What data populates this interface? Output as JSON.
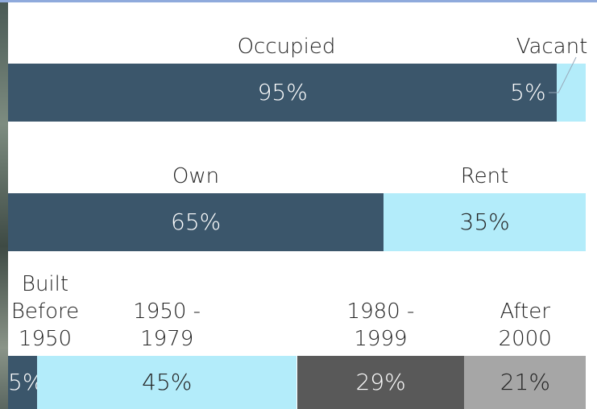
{
  "chart_data": [
    {
      "type": "bar",
      "stacked": true,
      "orientation": "horizontal",
      "series": [
        {
          "name": "Occupied",
          "color": "#3b566b",
          "values": [
            95
          ],
          "value_labels": [
            "95%"
          ]
        },
        {
          "name": "Vacant",
          "color": "#b3ecfa",
          "values": [
            5
          ],
          "value_labels": [
            "5%"
          ]
        }
      ]
    },
    {
      "type": "bar",
      "stacked": true,
      "orientation": "horizontal",
      "series": [
        {
          "name": "Own",
          "color": "#3b566b",
          "values": [
            65
          ],
          "value_labels": [
            "65%"
          ]
        },
        {
          "name": "Rent",
          "color": "#b3ecfa",
          "values": [
            35
          ],
          "value_labels": [
            "35%"
          ]
        }
      ]
    },
    {
      "type": "bar",
      "stacked": true,
      "orientation": "horizontal",
      "series": [
        {
          "name": "Built Before 1950",
          "color": "#3b566b",
          "values": [
            5
          ],
          "value_labels": [
            "5%"
          ]
        },
        {
          "name": "1950 - 1979",
          "color": "#b3ecfa",
          "values": [
            45
          ],
          "value_labels": [
            "45%"
          ]
        },
        {
          "name": "1980 - 1999",
          "color": "#595959",
          "values": [
            29
          ],
          "value_labels": [
            "29%"
          ]
        },
        {
          "name": "After 2000",
          "color": "#a6a6a6",
          "values": [
            21
          ],
          "value_labels": [
            "21%"
          ]
        }
      ]
    }
  ]
}
